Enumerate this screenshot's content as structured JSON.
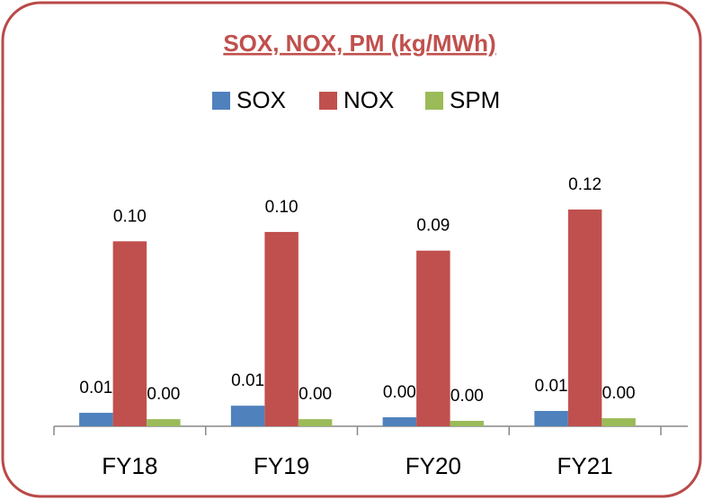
{
  "chart_data": {
    "type": "bar",
    "title": "SOX, NOX, PM (kg/MWh)",
    "categories": [
      "FY18",
      "FY19",
      "FY20",
      "FY21"
    ],
    "series": [
      {
        "name": "SOX",
        "color": "#4f81bd",
        "values": [
          0.0072,
          0.011,
          0.0048,
          0.0082
        ],
        "value_labels": [
          "0.01",
          "0.01",
          "0.00",
          "0.01"
        ]
      },
      {
        "name": "NOX",
        "color": "#c0504d",
        "values": [
          0.099,
          0.104,
          0.094,
          0.116
        ],
        "value_labels": [
          "0.10",
          "0.10",
          "0.09",
          "0.12"
        ]
      },
      {
        "name": "SPM",
        "color": "#9bbb59",
        "values": [
          0.0038,
          0.0038,
          0.0029,
          0.0043
        ],
        "value_labels": [
          "0.00",
          "0.00",
          "0.00",
          "0.00"
        ]
      }
    ]
  }
}
